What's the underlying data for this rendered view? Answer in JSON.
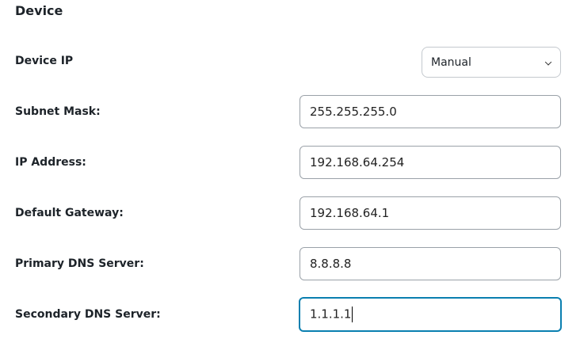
{
  "section_title": "Device",
  "device_ip": {
    "label": "Device IP",
    "selected": "Manual"
  },
  "fields": [
    {
      "label": "Subnet Mask:",
      "value": "255.255.255.0"
    },
    {
      "label": "IP Address:",
      "value": "192.168.64.254"
    },
    {
      "label": "Default Gateway:",
      "value": "192.168.64.1"
    },
    {
      "label": "Primary DNS Server:",
      "value": "8.8.8.8"
    },
    {
      "label": "Secondary DNS Server:",
      "value": "1.1.1.1",
      "focused": true
    }
  ],
  "colors": {
    "focus_border": "#0a7fb0"
  }
}
